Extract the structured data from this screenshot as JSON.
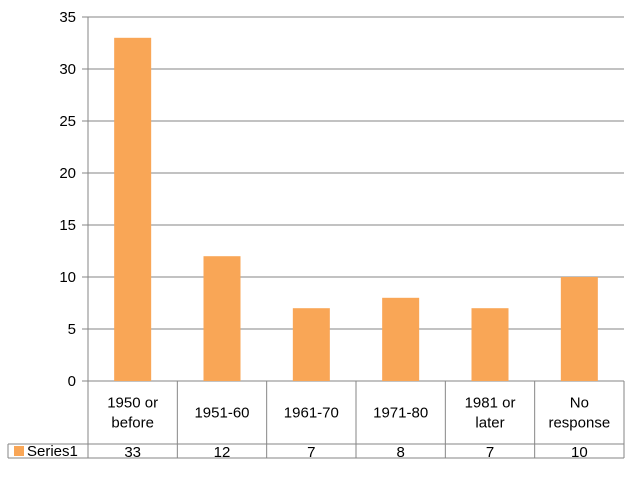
{
  "chart_data": {
    "type": "bar",
    "categories": [
      [
        "1950 or",
        "before"
      ],
      [
        "1951-60"
      ],
      [
        "1961-70"
      ],
      [
        "1971-80"
      ],
      [
        "1981 or",
        "later"
      ],
      [
        "No",
        "response"
      ]
    ],
    "series": [
      {
        "name": "Series1",
        "values": [
          33,
          12,
          7,
          8,
          7,
          10
        ],
        "color": "#F9A656"
      }
    ],
    "ylim": [
      0,
      35
    ],
    "yticks": [
      0,
      5,
      10,
      15,
      20,
      25,
      30,
      35
    ],
    "grid": true,
    "legend": "data-table",
    "gridColor": "#868686"
  }
}
